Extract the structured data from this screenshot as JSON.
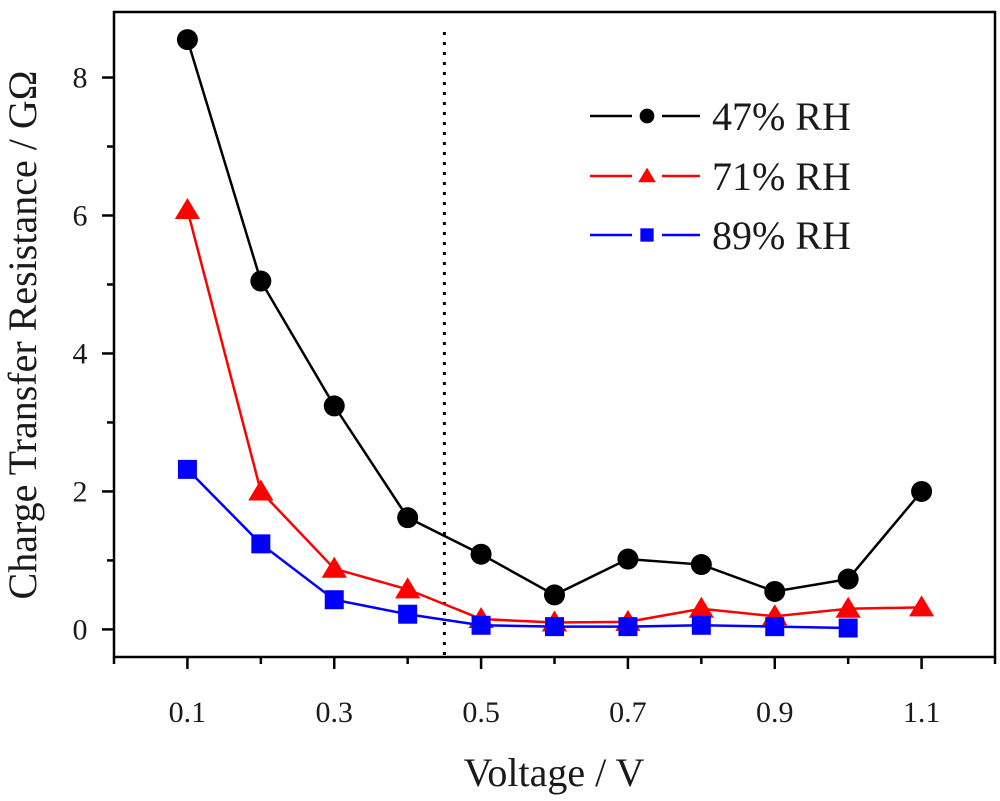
{
  "chart_data": {
    "type": "line",
    "title": "",
    "xlabel": "Voltage / V",
    "ylabel": "Charge Transfer Resistance / GΩ",
    "xlim": [
      0.0,
      1.2
    ],
    "ylim": [
      -0.4,
      8.95
    ],
    "xticks": [
      0.1,
      0.3,
      0.5,
      0.7,
      0.9,
      1.1
    ],
    "xtick_labels": [
      "0.1",
      "0.3",
      "0.5",
      "0.7",
      "0.9",
      "1.1"
    ],
    "yticks": [
      0,
      2,
      4,
      6,
      8
    ],
    "ytick_labels": [
      "0",
      "2",
      "4",
      "6",
      "8"
    ],
    "reference_line": {
      "x": 0.45,
      "style": "dotted"
    },
    "legend_position": "top-right",
    "series": [
      {
        "name": "47% RH",
        "color": "#000000",
        "marker": "circle",
        "x": [
          0.1,
          0.2,
          0.3,
          0.4,
          0.5,
          0.6,
          0.7,
          0.8,
          0.9,
          1.0,
          1.1
        ],
        "values": [
          8.55,
          5.05,
          3.24,
          1.62,
          1.09,
          0.5,
          1.02,
          0.94,
          0.55,
          0.73,
          2.0
        ]
      },
      {
        "name": "71% RH",
        "color": "#ff0000",
        "marker": "triangle",
        "x": [
          0.1,
          0.2,
          0.3,
          0.4,
          0.5,
          0.6,
          0.7,
          0.8,
          0.9,
          1.0,
          1.1
        ],
        "values": [
          6.08,
          2.0,
          0.88,
          0.58,
          0.15,
          0.1,
          0.11,
          0.3,
          0.19,
          0.3,
          0.32
        ]
      },
      {
        "name": "89% RH",
        "color": "#0000ff",
        "marker": "square",
        "x": [
          0.1,
          0.2,
          0.3,
          0.4,
          0.5,
          0.6,
          0.7,
          0.8,
          0.9,
          1.0
        ],
        "values": [
          2.32,
          1.24,
          0.43,
          0.22,
          0.06,
          0.04,
          0.04,
          0.06,
          0.04,
          0.02
        ]
      }
    ]
  }
}
